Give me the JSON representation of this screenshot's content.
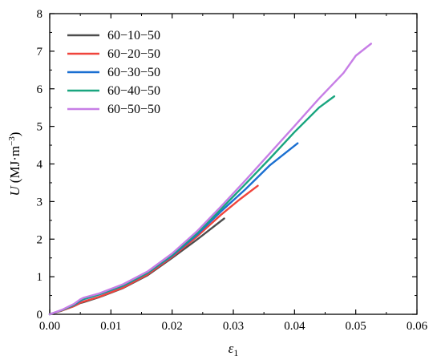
{
  "chart_data": {
    "type": "line",
    "xlabel": "ε",
    "xlabel_sub": "1",
    "ylabel": "U",
    "ylabel_unit_pre": "(MJ·m",
    "ylabel_unit_sup": "−3",
    "ylabel_unit_post": ")",
    "xlim": [
      0,
      0.06
    ],
    "ylim": [
      0,
      8
    ],
    "xticks": [
      "0.00",
      "0.01",
      "0.02",
      "0.03",
      "0.04",
      "0.05",
      "0.06"
    ],
    "yticks": [
      "0",
      "1",
      "2",
      "3",
      "4",
      "5",
      "6",
      "7",
      "8"
    ],
    "grid": false,
    "legend_position": "top-left",
    "series": [
      {
        "name": "60−10−50",
        "color": "#4d4d4d",
        "x": [
          0,
          0.002,
          0.004,
          0.005,
          0.0055,
          0.008,
          0.012,
          0.016,
          0.02,
          0.024,
          0.0285
        ],
        "y": [
          0,
          0.1,
          0.22,
          0.3,
          0.32,
          0.45,
          0.7,
          1.04,
          1.5,
          1.98,
          2.55
        ]
      },
      {
        "name": "60−20−50",
        "color": "#f0443c",
        "x": [
          0,
          0.002,
          0.004,
          0.005,
          0.0055,
          0.008,
          0.012,
          0.016,
          0.02,
          0.024,
          0.028,
          0.031,
          0.034
        ],
        "y": [
          0,
          0.1,
          0.22,
          0.31,
          0.34,
          0.46,
          0.71,
          1.06,
          1.53,
          2.06,
          2.65,
          3.05,
          3.42
        ]
      },
      {
        "name": "60−30−50",
        "color": "#1a6fd1",
        "x": [
          0,
          0.002,
          0.004,
          0.005,
          0.0055,
          0.008,
          0.012,
          0.016,
          0.02,
          0.024,
          0.028,
          0.032,
          0.036,
          0.0405
        ],
        "y": [
          0,
          0.11,
          0.25,
          0.36,
          0.4,
          0.52,
          0.76,
          1.1,
          1.56,
          2.11,
          2.74,
          3.33,
          3.97,
          4.55
        ]
      },
      {
        "name": "60−40−50",
        "color": "#19a57f",
        "x": [
          0,
          0.002,
          0.004,
          0.005,
          0.0055,
          0.008,
          0.012,
          0.016,
          0.02,
          0.024,
          0.028,
          0.032,
          0.036,
          0.04,
          0.044,
          0.0465
        ],
        "y": [
          0,
          0.11,
          0.26,
          0.38,
          0.41,
          0.53,
          0.77,
          1.11,
          1.58,
          2.15,
          2.8,
          3.47,
          4.15,
          4.85,
          5.5,
          5.8
        ]
      },
      {
        "name": "60−50−50",
        "color": "#c77ee6",
        "x": [
          0,
          0.002,
          0.004,
          0.005,
          0.0055,
          0.008,
          0.012,
          0.016,
          0.02,
          0.024,
          0.028,
          0.032,
          0.036,
          0.04,
          0.044,
          0.048,
          0.05,
          0.0525
        ],
        "y": [
          0,
          0.12,
          0.28,
          0.4,
          0.44,
          0.55,
          0.8,
          1.14,
          1.62,
          2.2,
          2.87,
          3.57,
          4.29,
          5.01,
          5.74,
          6.42,
          6.88,
          7.2
        ]
      }
    ]
  }
}
